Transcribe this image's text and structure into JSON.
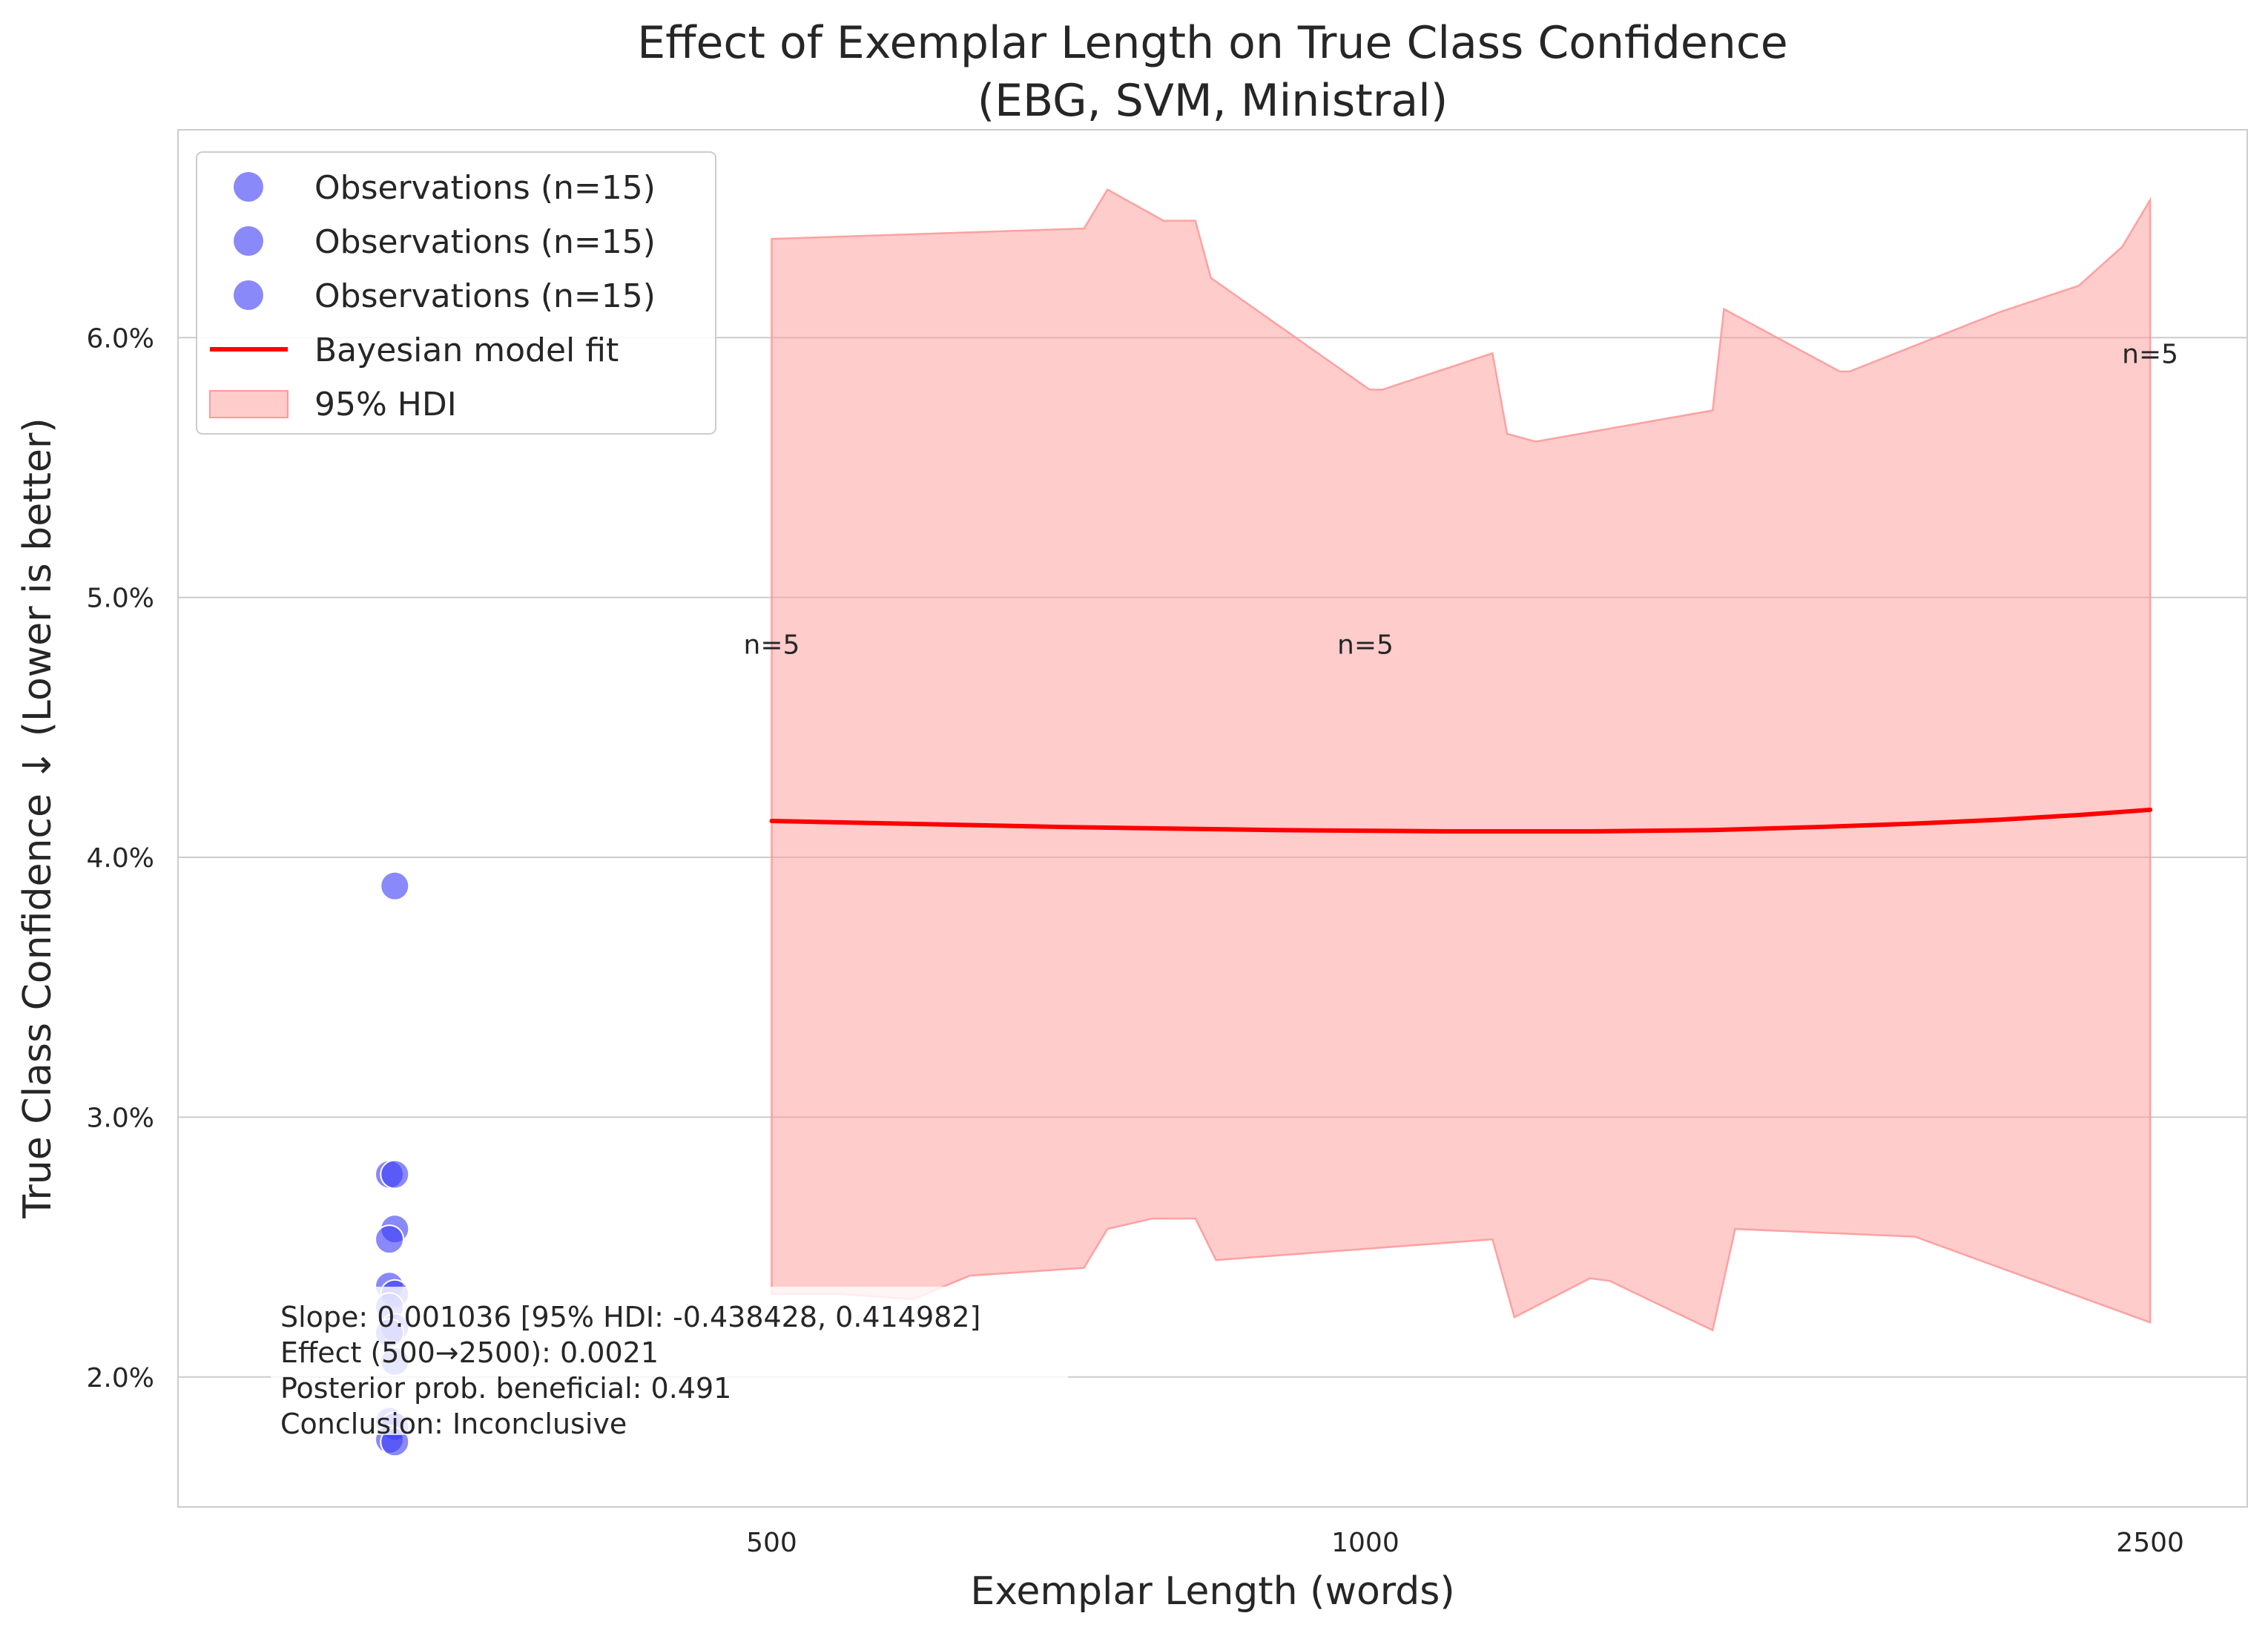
{
  "chart_data": {
    "type": "scatter",
    "title": "Effect of Exemplar Length on True Class Confidence",
    "subtitle": "(EBG, SVM, Ministral)",
    "xlabel": "Exemplar Length (words)",
    "ylabel": "True Class Confidence ↓ (Lower is better)",
    "x_scale": "log",
    "xlim": [
      250,
      2800
    ],
    "ylim": [
      1.5,
      6.8
    ],
    "y_unit": "%",
    "grid": "horizontal",
    "x_ticks": [
      {
        "value": 500,
        "label": "500"
      },
      {
        "value": 1000,
        "label": "1000"
      },
      {
        "value": 2500,
        "label": "2500"
      }
    ],
    "y_ticks": [
      {
        "value": 2.0,
        "label": "2.0%"
      },
      {
        "value": 3.0,
        "label": "3.0%"
      },
      {
        "value": 4.0,
        "label": "4.0%"
      },
      {
        "value": 5.0,
        "label": "5.0%"
      },
      {
        "value": 6.0,
        "label": "6.0%"
      }
    ],
    "legend": {
      "placement": "top-left",
      "entries": [
        {
          "label": "Observations (n=15)",
          "kind": "point"
        },
        {
          "label": "Observations (n=15)",
          "kind": "point"
        },
        {
          "label": "Observations (n=15)",
          "kind": "point"
        },
        {
          "label": "Bayesian model fit",
          "kind": "line"
        },
        {
          "label": "95% HDI",
          "kind": "band"
        }
      ]
    },
    "observations": {
      "color": "#3b3bf7",
      "points": [
        {
          "x": 322,
          "y": 3.89
        },
        {
          "x": 320,
          "y": 2.78
        },
        {
          "x": 322,
          "y": 2.78
        },
        {
          "x": 322,
          "y": 2.57
        },
        {
          "x": 320,
          "y": 2.53
        },
        {
          "x": 320,
          "y": 2.35
        },
        {
          "x": 322,
          "y": 2.32
        },
        {
          "x": 320,
          "y": 2.27
        },
        {
          "x": 322,
          "y": 2.19
        },
        {
          "x": 320,
          "y": 2.17
        },
        {
          "x": 322,
          "y": 2.06
        },
        {
          "x": 320,
          "y": 1.83
        },
        {
          "x": 322,
          "y": 1.81
        },
        {
          "x": 320,
          "y": 1.76
        },
        {
          "x": 322,
          "y": 1.75
        }
      ]
    },
    "model_fit": {
      "name": "Bayesian model fit",
      "color": "#ff0000",
      "x": [
        500,
        700,
        900,
        1100,
        1300,
        1500,
        1700,
        1900,
        2100,
        2300,
        2500
      ],
      "y": [
        4.14,
        4.117,
        4.105,
        4.1,
        4.1,
        4.105,
        4.117,
        4.13,
        4.145,
        4.163,
        4.183
      ]
    },
    "hdi_band": {
      "name": "95% HDI",
      "color": "#ff9999",
      "upper": [
        [
          500,
          6.38
        ],
        [
          720,
          6.42
        ],
        [
          740,
          6.57
        ],
        [
          790,
          6.45
        ],
        [
          820,
          6.45
        ],
        [
          835,
          6.23
        ],
        [
          1005,
          5.8
        ],
        [
          1020,
          5.8
        ],
        [
          1160,
          5.94
        ],
        [
          1180,
          5.63
        ],
        [
          1220,
          5.6
        ],
        [
          1500,
          5.72
        ],
        [
          1520,
          6.11
        ],
        [
          1740,
          5.87
        ],
        [
          1760,
          5.87
        ],
        [
          2100,
          6.1
        ],
        [
          2300,
          6.2
        ],
        [
          2420,
          6.35
        ],
        [
          2500,
          6.53
        ]
      ],
      "lower": [
        [
          500,
          2.32
        ],
        [
          540,
          2.32
        ],
        [
          590,
          2.3
        ],
        [
          630,
          2.39
        ],
        [
          720,
          2.42
        ],
        [
          740,
          2.57
        ],
        [
          780,
          2.61
        ],
        [
          820,
          2.61
        ],
        [
          840,
          2.45
        ],
        [
          1160,
          2.53
        ],
        [
          1190,
          2.23
        ],
        [
          1300,
          2.38
        ],
        [
          1330,
          2.37
        ],
        [
          1500,
          2.18
        ],
        [
          1540,
          2.57
        ],
        [
          1900,
          2.54
        ],
        [
          2500,
          2.21
        ]
      ]
    },
    "annotations": [
      {
        "text": "n=5",
        "x": 500,
        "y": 4.82
      },
      {
        "text": "n=5",
        "x": 1000,
        "y": 4.82
      },
      {
        "text": "n=5",
        "x": 2500,
        "y": 5.94
      }
    ],
    "stats_box": {
      "lines": [
        "Slope: 0.001036 [95% HDI: -0.438428, 0.414982]",
        "Effect (500→2500): 0.0021",
        "Posterior prob. beneficial: 0.491",
        "Conclusion: Inconclusive"
      ]
    }
  }
}
